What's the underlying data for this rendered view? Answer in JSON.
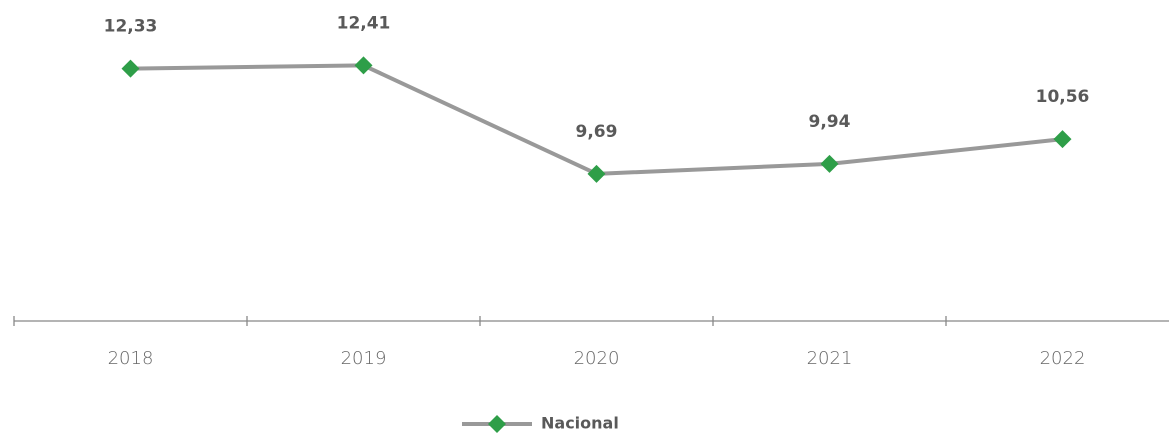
{
  "chart_data": {
    "type": "line",
    "categories": [
      "2018",
      "2019",
      "2020",
      "2021",
      "2022"
    ],
    "series": [
      {
        "name": "Nacional",
        "color": "#999999",
        "marker_color": "#2e9e48",
        "values": [
          12.33,
          12.41,
          9.69,
          9.94,
          10.56
        ],
        "value_labels": [
          "12,33",
          "12,41",
          "9,69",
          "9,94",
          "10,56"
        ]
      }
    ],
    "ylim": [
      6,
      14
    ],
    "legend": "bottom"
  }
}
